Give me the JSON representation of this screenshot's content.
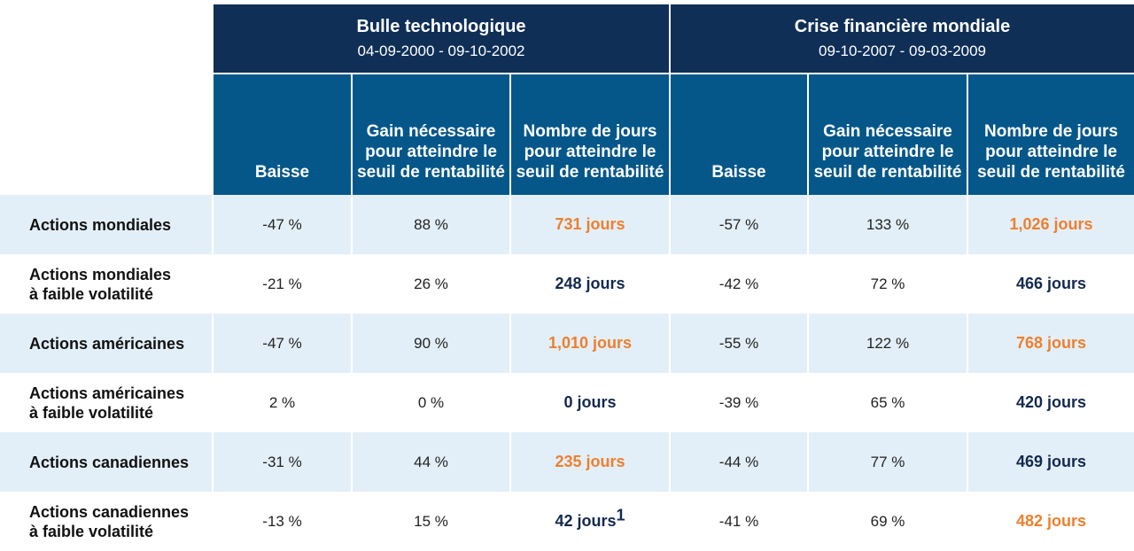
{
  "chart_data": {
    "type": "table",
    "groups": [
      {
        "title": "Bulle technologique",
        "dates": "04-09-2000 - 09-10-2002"
      },
      {
        "title": "Crise financière mondiale",
        "dates": "09-10-2007 - 09-03-2009"
      }
    ],
    "columns": [
      "Baisse",
      "Gain nécessaire pour atteindre le seuil de rentabilité",
      "Nombre de jours pour atteindre le seuil de rentabilité"
    ],
    "rows": [
      {
        "label_lines": [
          "Actions mondiales"
        ],
        "shaded": true,
        "cells": [
          {
            "text": "-47 %",
            "style": "plain"
          },
          {
            "text": "88 %",
            "style": "plain"
          },
          {
            "text": "731 jours",
            "style": "orange"
          },
          {
            "text": "-57 %",
            "style": "plain"
          },
          {
            "text": "133 %",
            "style": "plain"
          },
          {
            "text": "1,026 jours",
            "style": "orange"
          }
        ]
      },
      {
        "label_lines": [
          "Actions mondiales",
          "à faible volatilité"
        ],
        "shaded": false,
        "cells": [
          {
            "text": "-21 %",
            "style": "plain"
          },
          {
            "text": "26 %",
            "style": "plain"
          },
          {
            "text": "248 jours",
            "style": "navy"
          },
          {
            "text": "-42 %",
            "style": "plain"
          },
          {
            "text": "72 %",
            "style": "plain"
          },
          {
            "text": "466 jours",
            "style": "navy"
          }
        ]
      },
      {
        "label_lines": [
          "Actions américaines"
        ],
        "shaded": true,
        "cells": [
          {
            "text": "-47 %",
            "style": "plain"
          },
          {
            "text": "90 %",
            "style": "plain"
          },
          {
            "text": "1,010 jours",
            "style": "orange"
          },
          {
            "text": "-55 %",
            "style": "plain"
          },
          {
            "text": "122 %",
            "style": "plain"
          },
          {
            "text": "768 jours",
            "style": "orange"
          }
        ]
      },
      {
        "label_lines": [
          "Actions américaines",
          "à faible volatilité"
        ],
        "shaded": false,
        "cells": [
          {
            "text": "2 %",
            "style": "plain"
          },
          {
            "text": "0 %",
            "style": "plain"
          },
          {
            "text": "0 jours",
            "style": "navy"
          },
          {
            "text": "-39 %",
            "style": "plain"
          },
          {
            "text": "65 %",
            "style": "plain"
          },
          {
            "text": "420 jours",
            "style": "navy"
          }
        ]
      },
      {
        "label_lines": [
          "Actions canadiennes"
        ],
        "shaded": true,
        "cells": [
          {
            "text": "-31 %",
            "style": "plain"
          },
          {
            "text": "44 %",
            "style": "plain"
          },
          {
            "text": "235 jours",
            "style": "orange"
          },
          {
            "text": "-44 %",
            "style": "plain"
          },
          {
            "text": "77 %",
            "style": "plain"
          },
          {
            "text": "469 jours",
            "style": "navy"
          }
        ]
      },
      {
        "label_lines": [
          "Actions canadiennes",
          "à faible volatilité"
        ],
        "shaded": false,
        "cells": [
          {
            "text": "-13 %",
            "style": "plain"
          },
          {
            "text": "15 %",
            "style": "plain"
          },
          {
            "text": "42 jours",
            "style": "navy",
            "sup": "1"
          },
          {
            "text": "-41 %",
            "style": "plain"
          },
          {
            "text": "69 %",
            "style": "plain"
          },
          {
            "text": "482 jours",
            "style": "orange"
          }
        ]
      }
    ],
    "colors": {
      "group_header": "#0f2f57",
      "column_header": "#05578a",
      "row_shade": "#e3eff8",
      "highlight_orange": "#ee7f2d",
      "highlight_navy": "#13294f"
    }
  }
}
